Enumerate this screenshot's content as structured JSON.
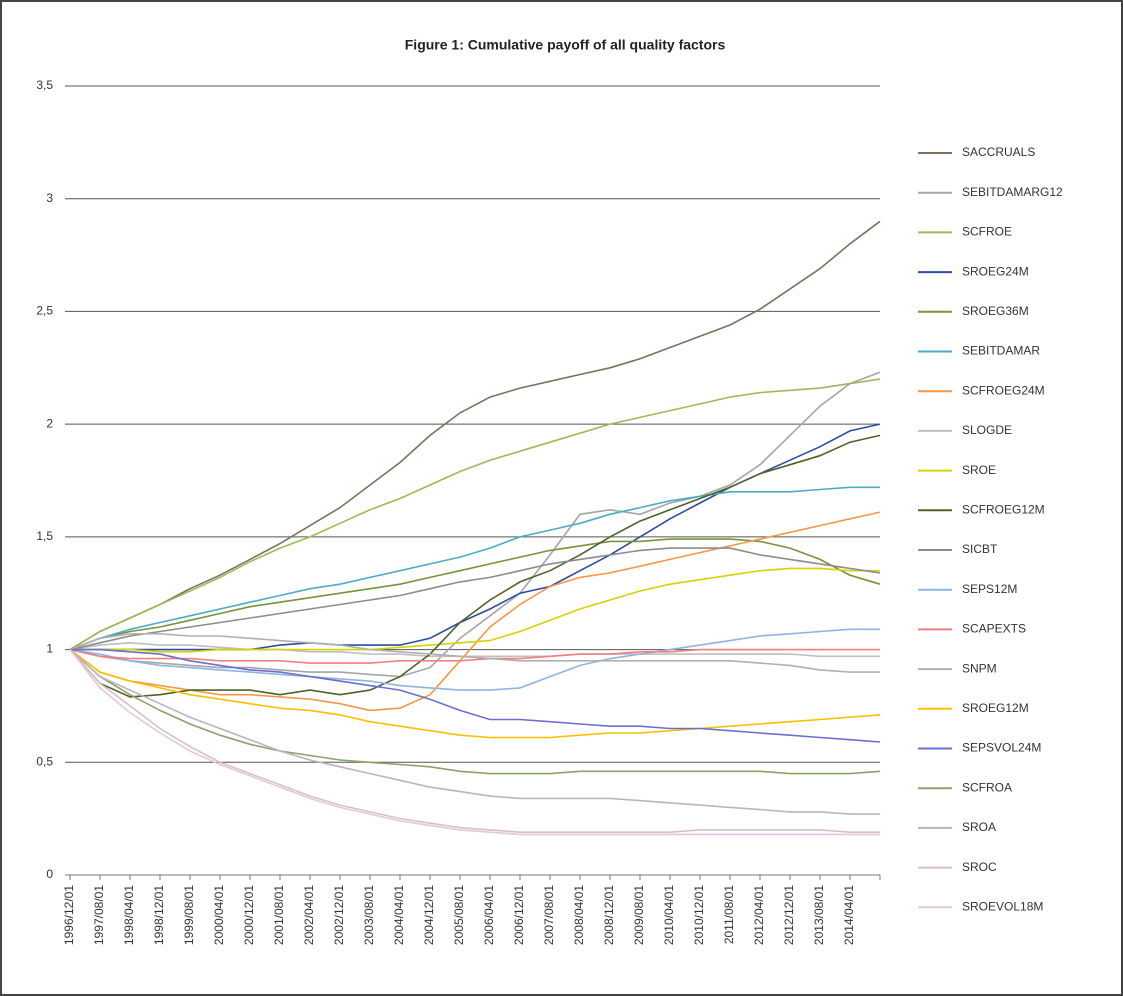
{
  "chart_data": {
    "type": "line",
    "title": "Figure 1: Cumulative payoff of all quality factors",
    "categories": [
      "1996/12/01",
      "1997/08/01",
      "1998/04/01",
      "1998/12/01",
      "1999/08/01",
      "2000/04/01",
      "2000/12/01",
      "2001/08/01",
      "2002/04/01",
      "2002/12/01",
      "2003/08/01",
      "2004/04/01",
      "2004/12/01",
      "2005/08/01",
      "2006/04/01",
      "2006/12/01",
      "2007/08/01",
      "2008/04/01",
      "2008/12/01",
      "2009/08/01",
      "2010/04/01",
      "2010/12/01",
      "2011/08/01",
      "2012/04/01",
      "2012/12/01",
      "2013/08/01",
      "2014/04/01",
      null
    ],
    "ylim": [
      0,
      3.5
    ],
    "yticks": [
      0,
      {
        "value": 0.5,
        "label": "0,5"
      },
      1,
      {
        "value": 1.5,
        "label": "1,5"
      },
      2,
      {
        "value": 2.5,
        "label": "2,5"
      },
      3,
      {
        "value": 3.5,
        "label": "3,5"
      }
    ],
    "grid": true,
    "legend": "right",
    "series": [
      {
        "name": "SACCRUALS",
        "color": "#7f6f5f",
        "values": [
          1,
          1.08,
          1.14,
          1.2,
          1.27,
          1.33,
          1.4,
          1.47,
          1.55,
          1.63,
          1.73,
          1.83,
          1.95,
          2.05,
          2.12,
          2.16,
          2.19,
          2.22,
          2.25,
          2.29,
          2.34,
          2.39,
          2.44,
          2.51,
          2.6,
          2.69,
          2.8,
          2.9
        ]
      },
      {
        "name": "SEBITDAMARG12",
        "color": "#a5a5a5",
        "values": [
          1,
          0.97,
          0.95,
          0.94,
          0.93,
          0.92,
          0.92,
          0.91,
          0.9,
          0.9,
          0.89,
          0.88,
          0.92,
          1.05,
          1.15,
          1.25,
          1.42,
          1.6,
          1.62,
          1.6,
          1.65,
          1.68,
          1.73,
          1.82,
          1.95,
          2.08,
          2.18,
          2.23
        ]
      },
      {
        "name": "SCFROE",
        "color": "#9bbb59",
        "values": [
          1,
          1.08,
          1.14,
          1.2,
          1.26,
          1.32,
          1.39,
          1.45,
          1.5,
          1.56,
          1.62,
          1.67,
          1.73,
          1.79,
          1.84,
          1.88,
          1.92,
          1.96,
          2.0,
          2.03,
          2.06,
          2.09,
          2.12,
          2.14,
          2.15,
          2.16,
          2.18,
          2.2
        ]
      },
      {
        "name": "SROEG24M",
        "color": "#2c4d9f",
        "values": [
          1,
          1.0,
          1.0,
          1.0,
          1.0,
          1.0,
          1.0,
          1.02,
          1.03,
          1.02,
          1.02,
          1.02,
          1.05,
          1.12,
          1.18,
          1.25,
          1.28,
          1.35,
          1.42,
          1.5,
          1.58,
          1.65,
          1.72,
          1.78,
          1.84,
          1.9,
          1.97,
          2.0
        ]
      },
      {
        "name": "SROEG36M",
        "color": "#77933c",
        "values": [
          1,
          1.05,
          1.08,
          1.1,
          1.13,
          1.16,
          1.19,
          1.21,
          1.23,
          1.25,
          1.27,
          1.29,
          1.32,
          1.35,
          1.38,
          1.41,
          1.44,
          1.46,
          1.48,
          1.48,
          1.49,
          1.49,
          1.49,
          1.48,
          1.45,
          1.4,
          1.33,
          1.29
        ]
      },
      {
        "name": "SEBITDAMAR",
        "color": "#4bacc6",
        "values": [
          1,
          1.05,
          1.09,
          1.12,
          1.15,
          1.18,
          1.21,
          1.24,
          1.27,
          1.29,
          1.32,
          1.35,
          1.38,
          1.41,
          1.45,
          1.5,
          1.53,
          1.56,
          1.6,
          1.63,
          1.66,
          1.68,
          1.7,
          1.7,
          1.7,
          1.71,
          1.72,
          1.72
        ]
      },
      {
        "name": "SCFROEG24M",
        "color": "#f79646",
        "values": [
          1,
          0.9,
          0.86,
          0.84,
          0.82,
          0.8,
          0.8,
          0.79,
          0.78,
          0.76,
          0.73,
          0.74,
          0.8,
          0.95,
          1.1,
          1.2,
          1.28,
          1.32,
          1.34,
          1.37,
          1.4,
          1.43,
          1.46,
          1.49,
          1.52,
          1.55,
          1.58,
          1.61
        ]
      },
      {
        "name": "SLOGDE",
        "color": "#bfbfbf",
        "values": [
          1,
          1.02,
          1.03,
          1.02,
          1.02,
          1.01,
          1.0,
          1.0,
          0.99,
          0.99,
          0.98,
          0.98,
          0.97,
          0.97,
          0.97,
          0.97,
          0.97,
          0.98,
          0.98,
          0.98,
          0.98,
          0.98,
          0.98,
          0.98,
          0.98,
          0.97,
          0.97,
          0.97
        ]
      },
      {
        "name": "SROE",
        "color": "#d4d400",
        "values": [
          1,
          1.0,
          1.0,
          0.99,
          0.99,
          1.0,
          1.0,
          1.0,
          1.0,
          1.0,
          1.0,
          1.01,
          1.02,
          1.03,
          1.04,
          1.08,
          1.13,
          1.18,
          1.22,
          1.26,
          1.29,
          1.31,
          1.33,
          1.35,
          1.36,
          1.36,
          1.35,
          1.35
        ]
      },
      {
        "name": "SCFROEG12M",
        "color": "#4f6228",
        "values": [
          1,
          0.85,
          0.79,
          0.8,
          0.82,
          0.82,
          0.82,
          0.8,
          0.82,
          0.8,
          0.82,
          0.88,
          0.98,
          1.12,
          1.22,
          1.3,
          1.35,
          1.42,
          1.5,
          1.57,
          1.62,
          1.67,
          1.72,
          1.78,
          1.82,
          1.86,
          1.92,
          1.95
        ]
      },
      {
        "name": "SICBT",
        "color": "#8c8c8c",
        "values": [
          1,
          1.03,
          1.06,
          1.08,
          1.1,
          1.12,
          1.14,
          1.16,
          1.18,
          1.2,
          1.22,
          1.24,
          1.27,
          1.3,
          1.32,
          1.35,
          1.38,
          1.4,
          1.42,
          1.44,
          1.45,
          1.45,
          1.45,
          1.42,
          1.4,
          1.38,
          1.36,
          1.34
        ]
      },
      {
        "name": "SEPS12M",
        "color": "#8eb4e3",
        "values": [
          1,
          0.98,
          0.95,
          0.93,
          0.92,
          0.91,
          0.9,
          0.89,
          0.88,
          0.87,
          0.86,
          0.84,
          0.83,
          0.82,
          0.82,
          0.83,
          0.88,
          0.93,
          0.96,
          0.98,
          1.0,
          1.02,
          1.04,
          1.06,
          1.07,
          1.08,
          1.09,
          1.09
        ]
      },
      {
        "name": "SCAPEXTS",
        "color": "#f08080",
        "values": [
          1,
          0.97,
          0.96,
          0.96,
          0.96,
          0.95,
          0.95,
          0.95,
          0.94,
          0.94,
          0.94,
          0.95,
          0.95,
          0.95,
          0.96,
          0.96,
          0.97,
          0.98,
          0.98,
          0.99,
          0.99,
          1.0,
          1.0,
          1.0,
          1.0,
          1.0,
          1.0,
          1.0
        ]
      },
      {
        "name": "SNPM",
        "color": "#b0b0b0",
        "values": [
          1,
          1.05,
          1.07,
          1.07,
          1.06,
          1.06,
          1.05,
          1.04,
          1.03,
          1.02,
          1.0,
          0.99,
          0.98,
          0.97,
          0.96,
          0.95,
          0.95,
          0.95,
          0.95,
          0.95,
          0.95,
          0.95,
          0.95,
          0.94,
          0.93,
          0.91,
          0.9,
          0.9
        ]
      },
      {
        "name": "SROEG12M",
        "color": "#fac000",
        "values": [
          1,
          0.9,
          0.86,
          0.83,
          0.8,
          0.78,
          0.76,
          0.74,
          0.73,
          0.71,
          0.68,
          0.66,
          0.64,
          0.62,
          0.61,
          0.61,
          0.61,
          0.62,
          0.63,
          0.63,
          0.64,
          0.65,
          0.66,
          0.67,
          0.68,
          0.69,
          0.7,
          0.71
        ]
      },
      {
        "name": "SEPSVOL24M",
        "color": "#6a6fd0",
        "values": [
          1,
          1.0,
          0.99,
          0.98,
          0.95,
          0.93,
          0.91,
          0.9,
          0.88,
          0.86,
          0.84,
          0.82,
          0.78,
          0.73,
          0.69,
          0.69,
          0.68,
          0.67,
          0.66,
          0.66,
          0.65,
          0.65,
          0.64,
          0.63,
          0.62,
          0.61,
          0.6,
          0.59
        ]
      },
      {
        "name": "SCFROA",
        "color": "#8aa36a",
        "values": [
          1,
          0.88,
          0.8,
          0.73,
          0.67,
          0.62,
          0.58,
          0.55,
          0.53,
          0.51,
          0.5,
          0.49,
          0.48,
          0.46,
          0.45,
          0.45,
          0.45,
          0.46,
          0.46,
          0.46,
          0.46,
          0.46,
          0.46,
          0.46,
          0.45,
          0.45,
          0.45,
          0.46
        ]
      },
      {
        "name": "SROA",
        "color": "#c0b0c0",
        "values": [
          1,
          0.88,
          0.82,
          0.76,
          0.7,
          0.65,
          0.6,
          0.55,
          0.51,
          0.48,
          0.45,
          0.42,
          0.39,
          0.37,
          0.35,
          0.34,
          0.34,
          0.34,
          0.34,
          0.33,
          0.32,
          0.31,
          0.3,
          0.29,
          0.28,
          0.28,
          0.27,
          0.27
        ]
      },
      {
        "name": "SROC",
        "color": "#d8c0c0",
        "values": [
          1,
          0.85,
          0.75,
          0.65,
          0.57,
          0.5,
          0.45,
          0.4,
          0.35,
          0.31,
          0.28,
          0.25,
          0.23,
          0.21,
          0.2,
          0.19,
          0.19,
          0.19,
          0.19,
          0.19,
          0.19,
          0.2,
          0.2,
          0.2,
          0.2,
          0.2,
          0.19,
          0.19
        ]
      },
      {
        "name": "SROEVOL18M",
        "color": "#e0c8e0",
        "values": [
          1,
          0.83,
          0.72,
          0.63,
          0.55,
          0.49,
          0.44,
          0.39,
          0.34,
          0.3,
          0.27,
          0.24,
          0.22,
          0.2,
          0.19,
          0.18,
          0.18,
          0.18,
          0.18,
          0.18,
          0.18,
          0.18,
          0.18,
          0.18,
          0.18,
          0.18,
          0.18,
          0.18
        ]
      }
    ]
  }
}
